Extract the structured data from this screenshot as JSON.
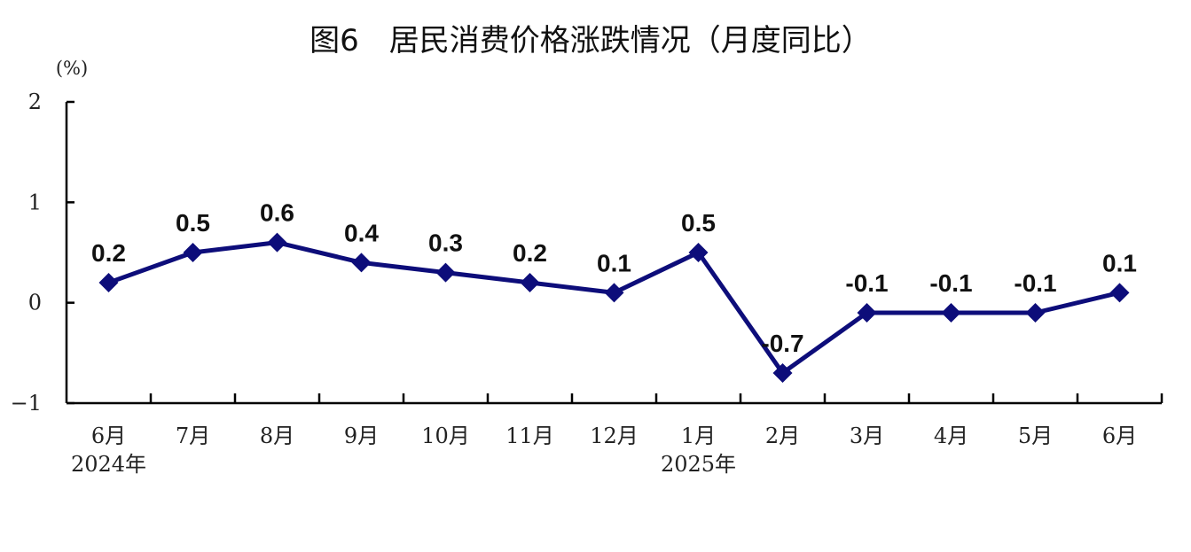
{
  "chart_data": {
    "type": "line",
    "title": "图6　居民消费价格涨跌情况（月度同比）",
    "unit": "(%)",
    "xlabel": "",
    "ylabel": "",
    "ylim": [
      -1,
      2
    ],
    "yticks": [
      "2",
      "1",
      "0",
      "−1"
    ],
    "grid": false,
    "legend": "none",
    "categories": [
      "6月",
      "7月",
      "8月",
      "9月",
      "10月",
      "11月",
      "12月",
      "1月",
      "2月",
      "3月",
      "4月",
      "5月",
      "6月"
    ],
    "year_labels": [
      "2024年",
      "2025年"
    ],
    "series": [
      {
        "values": [
          0.2,
          0.5,
          0.6,
          0.4,
          0.3,
          0.2,
          0.1,
          0.5,
          -0.7,
          -0.1,
          -0.1,
          -0.1,
          0.1
        ],
        "labels": [
          "0.2",
          "0.5",
          "0.6",
          "0.4",
          "0.3",
          "0.2",
          "0.1",
          "0.5",
          "-0.7",
          "-0.1",
          "-0.1",
          "-0.1",
          "0.1"
        ],
        "color": "#0d0d7a"
      }
    ]
  }
}
